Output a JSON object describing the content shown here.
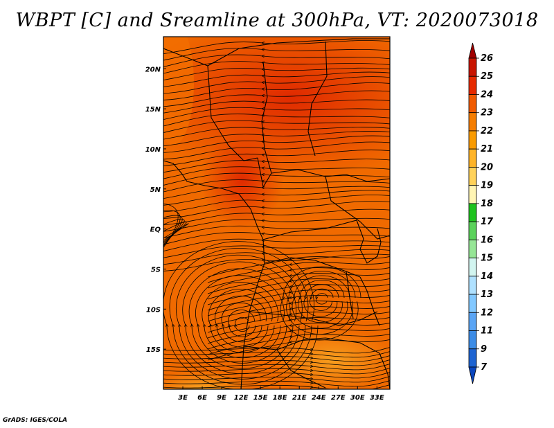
{
  "title": "WBPT [C] and Sreamline at 300hPa, VT: 2020073018",
  "credit": "GrADS: IGES/COLA",
  "map": {
    "lon_range": [
      0,
      35
    ],
    "lat_range": [
      -20,
      24
    ],
    "x_ticks": [
      {
        "lon": 3,
        "label": "3E"
      },
      {
        "lon": 6,
        "label": "6E"
      },
      {
        "lon": 9,
        "label": "9E"
      },
      {
        "lon": 12,
        "label": "12E"
      },
      {
        "lon": 15,
        "label": "15E"
      },
      {
        "lon": 18,
        "label": "18E"
      },
      {
        "lon": 21,
        "label": "21E"
      },
      {
        "lon": 24,
        "label": "24E"
      },
      {
        "lon": 27,
        "label": "27E"
      },
      {
        "lon": 30,
        "label": "30E"
      },
      {
        "lon": 33,
        "label": "33E"
      }
    ],
    "y_ticks": [
      {
        "lat": 20,
        "label": "20N"
      },
      {
        "lat": 15,
        "label": "15N"
      },
      {
        "lat": 10,
        "label": "10N"
      },
      {
        "lat": 5,
        "label": "5N"
      },
      {
        "lat": 0,
        "label": "EQ"
      },
      {
        "lat": -5,
        "label": "5S"
      },
      {
        "lat": -10,
        "label": "10S"
      },
      {
        "lat": -15,
        "label": "15S"
      }
    ]
  },
  "colorbar": {
    "labels": [
      "26",
      "25",
      "24",
      "23",
      "22",
      "21",
      "20",
      "19",
      "18",
      "17",
      "16",
      "15",
      "14",
      "13",
      "12",
      "11",
      "9",
      "7"
    ],
    "colors": [
      "#a00000",
      "#c81400",
      "#e62a00",
      "#f05a00",
      "#f57d00",
      "#fa9b00",
      "#ffb428",
      "#ffd25a",
      "#fff5b4",
      "#1ec31e",
      "#5ad25a",
      "#96e696",
      "#d2f5f0",
      "#afe1ff",
      "#82c8ff",
      "#5aa5f5",
      "#3c8ce6",
      "#1e64d2",
      "#0a46be"
    ]
  }
}
